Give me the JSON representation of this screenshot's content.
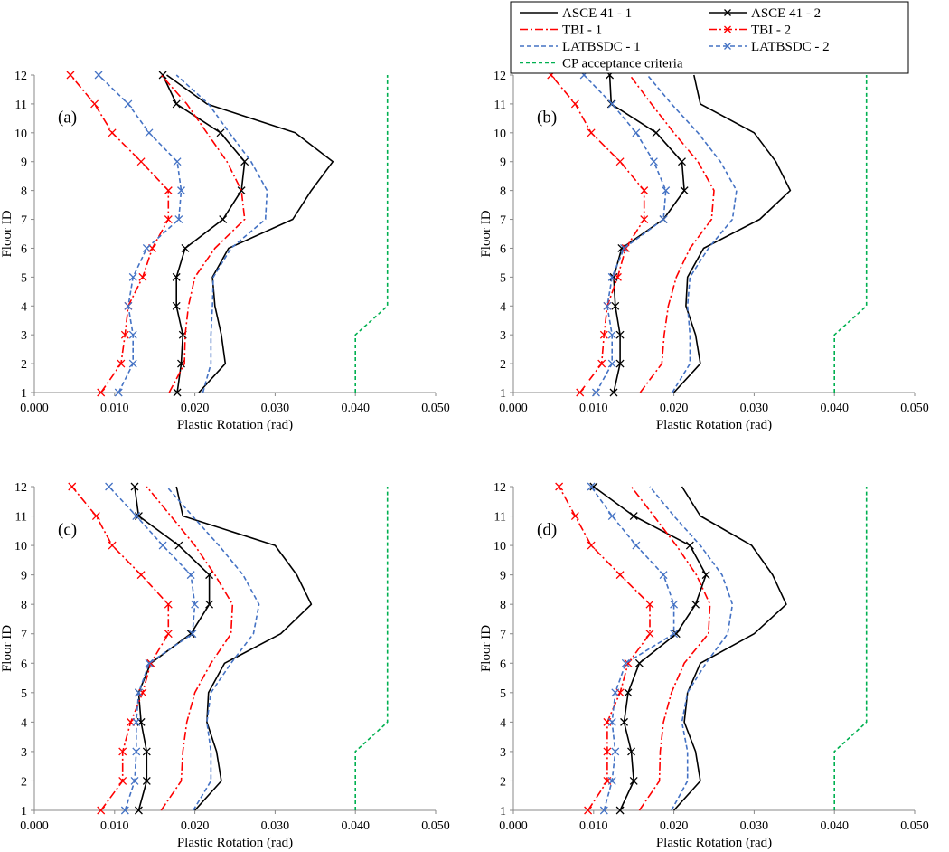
{
  "figure": {
    "legend": [
      {
        "label": "ASCE 41 - 1",
        "color": "#000000",
        "dash": "solid",
        "marker": "none"
      },
      {
        "label": "ASCE 41 - 2",
        "color": "#000000",
        "dash": "solid",
        "marker": "x"
      },
      {
        "label": "TBI - 1",
        "color": "#ff0000",
        "dash": "dashdot",
        "marker": "none"
      },
      {
        "label": "TBI - 2",
        "color": "#ff0000",
        "dash": "dashdot",
        "marker": "x"
      },
      {
        "label": "LATBSDC - 1",
        "color": "#4472c4",
        "dash": "dash",
        "marker": "none"
      },
      {
        "label": "LATBSDC - 2",
        "color": "#4472c4",
        "dash": "dash",
        "marker": "x"
      },
      {
        "label": "CP acceptance criteria",
        "color": "#00b050",
        "dash": "shortdash",
        "marker": "none"
      }
    ]
  },
  "chart_data": [
    {
      "type": "line",
      "panel_label": "(a)",
      "xlabel": "Plastic Rotation (rad)",
      "ylabel": "Floor ID",
      "xlim": [
        0,
        0.05
      ],
      "ylim": [
        1,
        12
      ],
      "xticks": [
        "0.000",
        "0.010",
        "0.020",
        "0.030",
        "0.040",
        "0.050"
      ],
      "yticks": [
        "1",
        "2",
        "3",
        "4",
        "5",
        "6",
        "7",
        "8",
        "9",
        "10",
        "11",
        "12"
      ],
      "y": [
        1,
        2,
        3,
        4,
        5,
        6,
        7,
        8,
        9,
        10,
        11,
        12
      ],
      "series": [
        {
          "name": "ASCE 41 - 1",
          "values": [
            0.0205,
            0.0238,
            0.0233,
            0.0225,
            0.0222,
            0.0242,
            0.0322,
            0.0345,
            0.0372,
            0.0325,
            0.0215,
            0.0165
          ]
        },
        {
          "name": "ASCE 41 - 2",
          "values": [
            0.0178,
            0.0183,
            0.0185,
            0.0177,
            0.0177,
            0.0188,
            0.0235,
            0.0258,
            0.0262,
            0.0232,
            0.0177,
            0.016
          ]
        },
        {
          "name": "TBI - 1",
          "values": [
            0.0168,
            0.0187,
            0.0188,
            0.0192,
            0.02,
            0.0225,
            0.0262,
            0.0258,
            0.024,
            0.0215,
            0.019,
            0.0158
          ]
        },
        {
          "name": "TBI - 2",
          "values": [
            0.0083,
            0.0108,
            0.0113,
            0.0117,
            0.0135,
            0.0147,
            0.0167,
            0.0167,
            0.0133,
            0.0097,
            0.0075,
            0.0045
          ]
        },
        {
          "name": "LATBSDC - 1",
          "values": [
            0.021,
            0.022,
            0.022,
            0.0222,
            0.0223,
            0.0245,
            0.0288,
            0.029,
            0.027,
            0.0243,
            0.0217,
            0.0177
          ]
        },
        {
          "name": "LATBSDC - 2",
          "values": [
            0.0105,
            0.0123,
            0.0123,
            0.0117,
            0.0123,
            0.014,
            0.018,
            0.0183,
            0.0178,
            0.0143,
            0.0117,
            0.008
          ]
        },
        {
          "name": "CP acceptance criteria",
          "values": [
            0.04,
            0.04,
            0.04,
            0.044,
            0.044,
            0.044,
            0.044,
            0.044,
            0.044,
            0.044,
            0.044,
            0.044
          ]
        }
      ]
    },
    {
      "type": "line",
      "panel_label": "(b)",
      "xlabel": "Plastic Rotation (rad)",
      "ylabel": "Floor ID",
      "xlim": [
        0,
        0.05
      ],
      "ylim": [
        1,
        12
      ],
      "xticks": [
        "0.000",
        "0.010",
        "0.020",
        "0.030",
        "0.040",
        "0.050"
      ],
      "yticks": [
        "1",
        "2",
        "3",
        "4",
        "5",
        "6",
        "7",
        "8",
        "9",
        "10",
        "11",
        "12"
      ],
      "y": [
        1,
        2,
        3,
        4,
        5,
        6,
        7,
        8,
        9,
        10,
        11,
        12
      ],
      "series": [
        {
          "name": "ASCE 41 - 1",
          "values": [
            0.02,
            0.0233,
            0.0227,
            0.0215,
            0.0217,
            0.0237,
            0.0307,
            0.0345,
            0.0327,
            0.03,
            0.0233,
            0.0225
          ]
        },
        {
          "name": "ASCE 41 - 2",
          "values": [
            0.0125,
            0.0133,
            0.0133,
            0.0127,
            0.0125,
            0.0135,
            0.0187,
            0.0213,
            0.021,
            0.0178,
            0.0122,
            0.012
          ]
        },
        {
          "name": "TBI - 1",
          "values": [
            0.0158,
            0.0185,
            0.0188,
            0.0193,
            0.0203,
            0.022,
            0.0247,
            0.025,
            0.023,
            0.02,
            0.0172,
            0.0145
          ]
        },
        {
          "name": "TBI - 2",
          "values": [
            0.0083,
            0.011,
            0.0113,
            0.0117,
            0.013,
            0.014,
            0.0163,
            0.0163,
            0.0133,
            0.0097,
            0.0077,
            0.0047
          ]
        },
        {
          "name": "LATBSDC - 1",
          "values": [
            0.0198,
            0.022,
            0.022,
            0.0217,
            0.022,
            0.0243,
            0.0273,
            0.0278,
            0.0258,
            0.023,
            0.0197,
            0.0167
          ]
        },
        {
          "name": "LATBSDC - 2",
          "values": [
            0.0103,
            0.0123,
            0.0123,
            0.0117,
            0.0123,
            0.0138,
            0.0187,
            0.019,
            0.0175,
            0.0153,
            0.0123,
            0.0088
          ]
        },
        {
          "name": "CP acceptance criteria",
          "values": [
            0.04,
            0.04,
            0.04,
            0.044,
            0.044,
            0.044,
            0.044,
            0.044,
            0.044,
            0.044,
            0.044,
            0.044
          ]
        }
      ]
    },
    {
      "type": "line",
      "panel_label": "(c)",
      "xlabel": "Plastic Rotation (rad)",
      "ylabel": "Floor ID",
      "xlim": [
        0,
        0.05
      ],
      "ylim": [
        1,
        12
      ],
      "xticks": [
        "0.000",
        "0.010",
        "0.020",
        "0.030",
        "0.040",
        "0.050"
      ],
      "yticks": [
        "1",
        "2",
        "3",
        "4",
        "5",
        "6",
        "7",
        "8",
        "9",
        "10",
        "11",
        "12"
      ],
      "y": [
        1,
        2,
        3,
        4,
        5,
        6,
        7,
        8,
        9,
        10,
        11,
        12
      ],
      "series": [
        {
          "name": "ASCE 41 - 1",
          "values": [
            0.02,
            0.0233,
            0.0227,
            0.0215,
            0.0217,
            0.0237,
            0.0307,
            0.0345,
            0.0327,
            0.03,
            0.0185,
            0.0177
          ]
        },
        {
          "name": "ASCE 41 - 2",
          "values": [
            0.013,
            0.014,
            0.014,
            0.0133,
            0.013,
            0.0145,
            0.0195,
            0.0218,
            0.0218,
            0.018,
            0.013,
            0.0125
          ]
        },
        {
          "name": "TBI - 1",
          "values": [
            0.0158,
            0.0183,
            0.0185,
            0.019,
            0.02,
            0.022,
            0.0245,
            0.0247,
            0.0225,
            0.02,
            0.017,
            0.014
          ]
        },
        {
          "name": "TBI - 2",
          "values": [
            0.0083,
            0.011,
            0.011,
            0.012,
            0.0135,
            0.0145,
            0.0167,
            0.0167,
            0.0133,
            0.0097,
            0.0077,
            0.0047
          ]
        },
        {
          "name": "LATBSDC - 1",
          "values": [
            0.0198,
            0.022,
            0.022,
            0.0215,
            0.022,
            0.0245,
            0.0273,
            0.028,
            0.026,
            0.023,
            0.0197,
            0.0165
          ]
        },
        {
          "name": "LATBSDC - 2",
          "values": [
            0.0113,
            0.0125,
            0.0127,
            0.0127,
            0.013,
            0.0143,
            0.0197,
            0.02,
            0.0195,
            0.016,
            0.0127,
            0.0093
          ]
        },
        {
          "name": "CP acceptance criteria",
          "values": [
            0.04,
            0.04,
            0.04,
            0.044,
            0.044,
            0.044,
            0.044,
            0.044,
            0.044,
            0.044,
            0.044,
            0.044
          ]
        }
      ]
    },
    {
      "type": "line",
      "panel_label": "(d)",
      "xlabel": "Plastic Rotation (rad)",
      "ylabel": "Floor ID",
      "xlim": [
        0,
        0.05
      ],
      "ylim": [
        1,
        12
      ],
      "xticks": [
        "0.000",
        "0.010",
        "0.020",
        "0.030",
        "0.040",
        "0.050"
      ],
      "yticks": [
        "1",
        "2",
        "3",
        "4",
        "5",
        "6",
        "7",
        "8",
        "9",
        "10",
        "11",
        "12"
      ],
      "y": [
        1,
        2,
        3,
        4,
        5,
        6,
        7,
        8,
        9,
        10,
        11,
        12
      ],
      "series": [
        {
          "name": "ASCE 41 - 1",
          "values": [
            0.02,
            0.0233,
            0.0227,
            0.0213,
            0.0217,
            0.0233,
            0.03,
            0.034,
            0.0323,
            0.0297,
            0.0233,
            0.021
          ]
        },
        {
          "name": "ASCE 41 - 2",
          "values": [
            0.0133,
            0.015,
            0.0147,
            0.0138,
            0.0143,
            0.0157,
            0.0203,
            0.0227,
            0.024,
            0.022,
            0.015,
            0.01
          ]
        },
        {
          "name": "TBI - 1",
          "values": [
            0.0157,
            0.0182,
            0.0183,
            0.0187,
            0.0197,
            0.0213,
            0.0243,
            0.0245,
            0.0228,
            0.0203,
            0.0175,
            0.0147
          ]
        },
        {
          "name": "TBI - 2",
          "values": [
            0.0093,
            0.0117,
            0.0117,
            0.0117,
            0.0133,
            0.0143,
            0.017,
            0.017,
            0.0133,
            0.0097,
            0.0077,
            0.0057
          ]
        },
        {
          "name": "LATBSDC - 1",
          "values": [
            0.0197,
            0.0217,
            0.0217,
            0.021,
            0.0217,
            0.024,
            0.0267,
            0.0273,
            0.026,
            0.0233,
            0.02,
            0.017
          ]
        },
        {
          "name": "LATBSDC - 2",
          "values": [
            0.0113,
            0.0123,
            0.0127,
            0.0123,
            0.0127,
            0.014,
            0.02,
            0.02,
            0.0187,
            0.0153,
            0.0123,
            0.0097
          ]
        },
        {
          "name": "CP acceptance criteria",
          "values": [
            0.04,
            0.04,
            0.04,
            0.044,
            0.044,
            0.044,
            0.044,
            0.044,
            0.044,
            0.044,
            0.044,
            0.044
          ]
        }
      ]
    }
  ]
}
